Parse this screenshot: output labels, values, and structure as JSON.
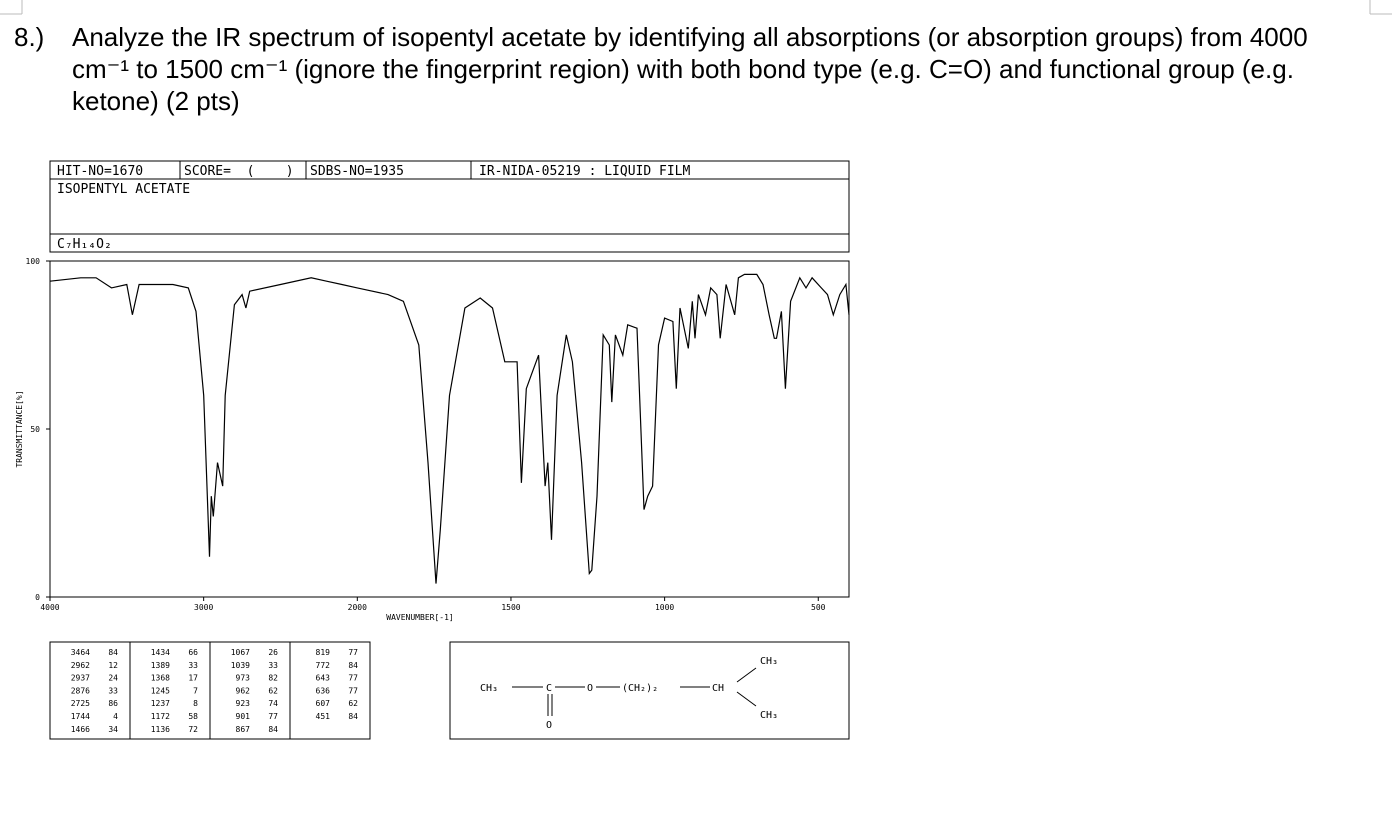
{
  "question": {
    "number": "8.)",
    "lines": [
      "Analyze the IR spectrum of isopentyl acetate by identifying all absorptions (or absorption groups) from 4000",
      "cm⁻¹ to 1500 cm⁻¹ (ignore the fingerprint region) with both bond type (e.g. C=O) and functional group (e.g.",
      "ketone) (2 pts)"
    ]
  },
  "header": {
    "hit_no": "HIT-NO=1670",
    "score": "SCORE=  (    )",
    "sdbs_no": "SDBS-NO=1935",
    "ir_id": "IR-NIDA-05219 : LIQUID FILM",
    "name": "ISOPENTYL ACETATE",
    "formula": "C₇H₁₄O₂"
  },
  "chart_data": {
    "type": "line",
    "x_label": "WAVENUMBER[-1]",
    "y_label": "TRANSMITTANCE[%]",
    "xlim": [
      4000,
      400
    ],
    "x_scale_break": 2000,
    "xticks": [
      4000,
      3000,
      2000,
      1500,
      1000,
      500
    ],
    "ylim": [
      0,
      100
    ],
    "yticks": [
      0,
      50,
      100
    ],
    "x": [
      4000,
      3800,
      3700,
      3600,
      3500,
      3464,
      3420,
      3200,
      3100,
      3050,
      3000,
      2962,
      2950,
      2937,
      2910,
      2876,
      2860,
      2800,
      2750,
      2725,
      2700,
      2500,
      2300,
      2200,
      2100,
      2000,
      1900,
      1850,
      1800,
      1770,
      1744,
      1730,
      1700,
      1650,
      1600,
      1560,
      1520,
      1480,
      1466,
      1450,
      1434,
      1410,
      1389,
      1380,
      1368,
      1350,
      1320,
      1300,
      1270,
      1245,
      1237,
      1220,
      1200,
      1180,
      1172,
      1160,
      1136,
      1120,
      1090,
      1067,
      1055,
      1039,
      1020,
      1000,
      973,
      962,
      950,
      923,
      910,
      901,
      890,
      867,
      850,
      830,
      819,
      800,
      772,
      760,
      740,
      700,
      680,
      660,
      643,
      636,
      620,
      607,
      590,
      560,
      540,
      520,
      490,
      470,
      451,
      430,
      410,
      400
    ],
    "series": [
      {
        "name": "isopentyl acetate",
        "color": "#000000",
        "values": [
          94,
          95,
          95,
          92,
          93,
          84,
          93,
          93,
          92,
          85,
          60,
          12,
          30,
          24,
          40,
          33,
          60,
          87,
          90,
          86,
          91,
          93,
          95,
          94,
          93,
          92,
          90,
          88,
          75,
          40,
          4,
          20,
          60,
          86,
          89,
          86,
          70,
          70,
          34,
          62,
          66,
          72,
          33,
          40,
          17,
          60,
          78,
          70,
          40,
          7,
          8,
          30,
          78,
          75,
          58,
          78,
          72,
          81,
          80,
          26,
          30,
          33,
          75,
          83,
          82,
          62,
          86,
          74,
          88,
          77,
          90,
          84,
          92,
          90,
          77,
          93,
          84,
          95,
          96,
          96,
          93,
          84,
          77,
          77,
          85,
          62,
          88,
          95,
          92,
          95,
          92,
          90,
          84,
          90,
          93,
          84
        ]
      }
    ]
  },
  "peak_table": [
    [
      [
        "3464",
        "84"
      ],
      [
        "2962",
        "12"
      ],
      [
        "2937",
        "24"
      ],
      [
        "2876",
        "33"
      ],
      [
        "2725",
        "86"
      ],
      [
        "1744",
        "4"
      ],
      [
        "1466",
        "34"
      ]
    ],
    [
      [
        "1434",
        "66"
      ],
      [
        "1389",
        "33"
      ],
      [
        "1368",
        "17"
      ],
      [
        "1245",
        "7"
      ],
      [
        "1237",
        "8"
      ],
      [
        "1172",
        "58"
      ],
      [
        "1136",
        "72"
      ]
    ],
    [
      [
        "1067",
        "26"
      ],
      [
        "1039",
        "33"
      ],
      [
        "973",
        "82"
      ],
      [
        "962",
        "62"
      ],
      [
        "923",
        "74"
      ],
      [
        "901",
        "77"
      ],
      [
        "867",
        "84"
      ]
    ],
    [
      [
        "819",
        "77"
      ],
      [
        "772",
        "84"
      ],
      [
        "643",
        "77"
      ],
      [
        "636",
        "77"
      ],
      [
        "607",
        "62"
      ],
      [
        "451",
        "84"
      ]
    ]
  ],
  "structure": {
    "atoms": [
      "CH₃",
      "C",
      "O",
      "(CH₂)₂",
      "CH",
      "CH₃",
      "CH₃",
      "O"
    ]
  }
}
